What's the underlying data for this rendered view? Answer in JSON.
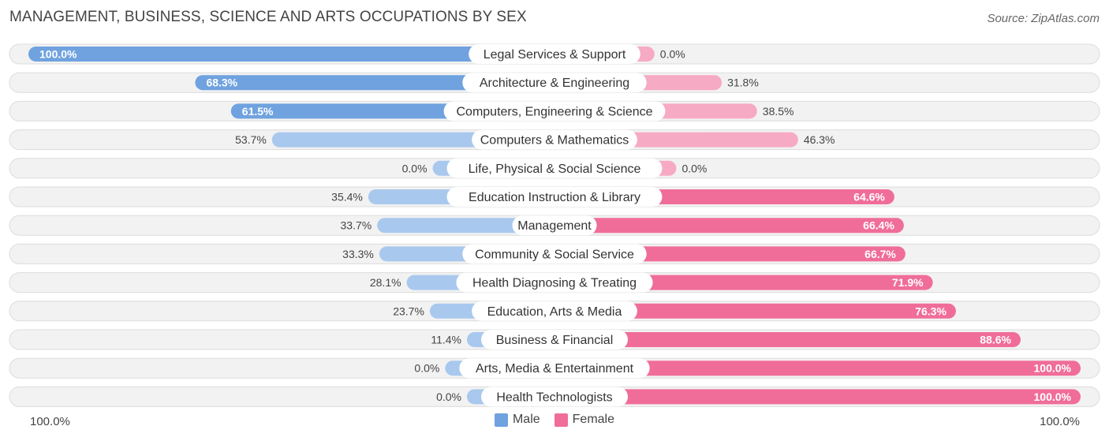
{
  "title": "MANAGEMENT, BUSINESS, SCIENCE AND ARTS OCCUPATIONS BY SEX",
  "source": "Source: ZipAtlas.com",
  "axis": {
    "left_label": "100.0%",
    "right_label": "100.0%"
  },
  "legend": [
    {
      "name": "Male",
      "color": "#6fa2df"
    },
    {
      "name": "Female",
      "color": "#f06d99"
    }
  ],
  "colors": {
    "male_strong": "#6fa2df",
    "male_light": "#a9c8ee",
    "female_strong": "#f06d99",
    "female_light": "#f7aac4",
    "track": "#f2f2f2",
    "track_border": "#dcdcdc"
  },
  "chart_data": {
    "type": "bar",
    "orientation": "horizontal-diverging",
    "title": "MANAGEMENT, BUSINESS, SCIENCE AND ARTS OCCUPATIONS BY SEX",
    "xlim": [
      -100,
      100
    ],
    "categories": [
      "Legal Services & Support",
      "Architecture & Engineering",
      "Computers, Engineering & Science",
      "Computers & Mathematics",
      "Life, Physical & Social Science",
      "Education Instruction & Library",
      "Management",
      "Community & Social Service",
      "Health Diagnosing & Treating",
      "Education, Arts & Media",
      "Business & Financial",
      "Arts, Media & Entertainment",
      "Health Technologists"
    ],
    "series": [
      {
        "name": "Male",
        "values": [
          100.0,
          68.3,
          61.5,
          53.7,
          0.0,
          35.4,
          33.7,
          33.3,
          28.1,
          23.7,
          11.4,
          0.0,
          0.0
        ]
      },
      {
        "name": "Female",
        "values": [
          0.0,
          31.8,
          38.5,
          46.3,
          0.0,
          64.6,
          66.4,
          66.7,
          71.9,
          76.3,
          88.6,
          100.0,
          100.0
        ]
      }
    ],
    "male_labels": [
      "100.0%",
      "68.3%",
      "61.5%",
      "53.7%",
      "0.0%",
      "35.4%",
      "33.7%",
      "33.3%",
      "28.1%",
      "23.7%",
      "11.4%",
      "0.0%",
      "0.0%"
    ],
    "female_labels": [
      "0.0%",
      "31.8%",
      "38.5%",
      "46.3%",
      "0.0%",
      "64.6%",
      "66.4%",
      "66.7%",
      "71.9%",
      "76.3%",
      "88.6%",
      "100.0%",
      "100.0%"
    ]
  }
}
